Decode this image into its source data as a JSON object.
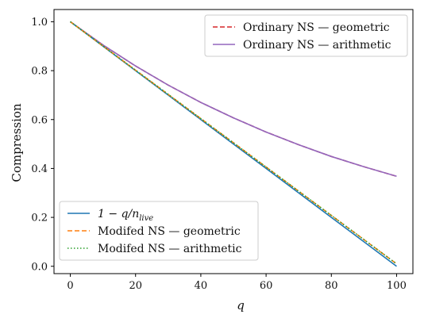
{
  "chart_data": {
    "type": "line",
    "xlabel": "q",
    "ylabel": "Compression",
    "xlim": [
      -5,
      105
    ],
    "ylim": [
      -0.03,
      1.05
    ],
    "xticks": [
      0,
      20,
      40,
      60,
      80,
      100
    ],
    "yticks": [
      0.0,
      0.2,
      0.4,
      0.6,
      0.8,
      1.0
    ],
    "grid": false,
    "x": [
      0,
      10,
      20,
      30,
      40,
      50,
      60,
      70,
      80,
      90,
      100
    ],
    "series": [
      {
        "key": "ordinary_geometric",
        "name": "Ordinary NS — geometric",
        "color": "#d62728",
        "style": "dashed",
        "legend": "top-right",
        "values": [
          1.0,
          0.905,
          0.819,
          0.741,
          0.67,
          0.607,
          0.549,
          0.497,
          0.449,
          0.407,
          0.368
        ]
      },
      {
        "key": "ordinary_arithmetic",
        "name": "Ordinary NS — arithmetic",
        "color": "#9467bd",
        "style": "solid",
        "legend": "top-right",
        "values": [
          1.0,
          0.905,
          0.819,
          0.741,
          0.67,
          0.607,
          0.549,
          0.497,
          0.449,
          0.407,
          0.368
        ]
      },
      {
        "key": "linear",
        "name_parts": {
          "main": "1 − q/n",
          "sub": "live"
        },
        "color": "#1f77b4",
        "style": "solid",
        "legend": "bottom-left",
        "values": [
          1.0,
          0.9,
          0.8,
          0.7,
          0.6,
          0.5,
          0.4,
          0.3,
          0.2,
          0.1,
          0.0
        ]
      },
      {
        "key": "modified_geometric",
        "name": "Modifed NS — geometric",
        "color": "#ff7f0e",
        "style": "dashed",
        "legend": "bottom-left",
        "values": [
          1.0,
          0.901,
          0.802,
          0.703,
          0.604,
          0.505,
          0.406,
          0.307,
          0.208,
          0.109,
          0.01
        ]
      },
      {
        "key": "modified_arithmetic",
        "name": "Modifed NS — arithmetic",
        "color": "#2ca02c",
        "style": "dotted",
        "legend": "bottom-left",
        "values": [
          1.0,
          0.901,
          0.802,
          0.703,
          0.604,
          0.505,
          0.406,
          0.307,
          0.208,
          0.109,
          0.01
        ]
      }
    ],
    "legend_placement": [
      "top-right",
      "bottom-left"
    ]
  }
}
